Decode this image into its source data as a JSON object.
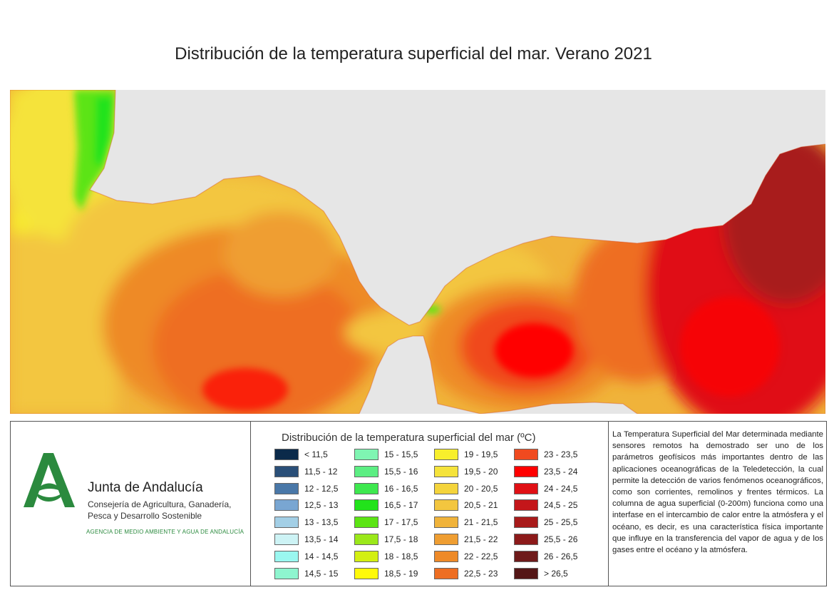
{
  "title": "Distribución de la temperatura superficial del mar. Verano 2021",
  "legend": {
    "title": "Distribución de la temperatura superficial del mar (ºC)",
    "columns": [
      [
        {
          "label": "< 11,5",
          "color": "#0b2a4a"
        },
        {
          "label": "11,5 - 12",
          "color": "#2a4f78"
        },
        {
          "label": "12 - 12,5",
          "color": "#4a78a8"
        },
        {
          "label": "12,5 - 13",
          "color": "#79a6d2"
        },
        {
          "label": "13 - 13,5",
          "color": "#a3cfe6"
        },
        {
          "label": "13,5 - 14",
          "color": "#cdf3f5"
        },
        {
          "label": "14 - 14,5",
          "color": "#9af7f0"
        },
        {
          "label": "14,5 - 15",
          "color": "#8ef5cf"
        }
      ],
      [
        {
          "label": "15 - 15,5",
          "color": "#7ff5b2"
        },
        {
          "label": "15,5 - 16",
          "color": "#5cee83"
        },
        {
          "label": "16 - 16,5",
          "color": "#3ee84f"
        },
        {
          "label": "16,5 - 17",
          "color": "#22e31b"
        },
        {
          "label": "17 - 17,5",
          "color": "#5ce414"
        },
        {
          "label": "17,5 - 18",
          "color": "#9be81a"
        },
        {
          "label": "18 - 18,5",
          "color": "#d3ef12"
        },
        {
          "label": "18,5 - 19",
          "color": "#fffa0a"
        }
      ],
      [
        {
          "label": "19 - 19,5",
          "color": "#f8ef2c"
        },
        {
          "label": "19,5 - 20",
          "color": "#f5e33b"
        },
        {
          "label": "20 - 20,5",
          "color": "#f4d43c"
        },
        {
          "label": "20,5 - 21",
          "color": "#f3c63f"
        },
        {
          "label": "21 - 21,5",
          "color": "#f0b33a"
        },
        {
          "label": "21,5 - 22",
          "color": "#ef9e32"
        },
        {
          "label": "22 - 22,5",
          "color": "#ee8a28"
        },
        {
          "label": "22,5 - 23",
          "color": "#ee6e22"
        }
      ],
      [
        {
          "label": "23 - 23,5",
          "color": "#f04a1f"
        },
        {
          "label": "23,5 - 24",
          "color": "#ff0000"
        },
        {
          "label": "24 - 24,5",
          "color": "#e01015"
        },
        {
          "label": "24,5 - 25",
          "color": "#c4161a"
        },
        {
          "label": "25 - 25,5",
          "color": "#a81a1a"
        },
        {
          "label": "25,5 - 26",
          "color": "#8c1a1a"
        },
        {
          "label": "26 - 26,5",
          "color": "#6e1a1a"
        },
        {
          "label": "> 26,5",
          "color": "#541616"
        }
      ]
    ]
  },
  "organization": {
    "name": "Junta de Andalucía",
    "sub_line1": "Consejería de Agricultura, Ganadería,",
    "sub_line2": "Pesca y Desarrollo Sostenible",
    "agency": "AGENCIA DE MEDIO AMBIENTE Y AGUA DE ANDALUCÍA",
    "brand_color": "#2b8a3e"
  },
  "description": "La Temperatura Superficial del Mar determinada mediante sensores remotos ha demostrado ser uno de los parámetros geofísicos más importantes dentro de las aplicaciones oceanográficas de la Teledetección, la cual permite la detección de varios fenómenos oceanográficos, como son corrientes, remolinos y frentes térmicos. La columna de agua superficial (0-200m) funciona como una interfase en el intercambio de calor entre la atmósfera y el océano, es decir, es una característica física importante que influye en la transferencia del vapor de agua y de los gases entre el océano y la atmósfera.",
  "map": {
    "land_color": "#e6e6e6",
    "colors": {
      "yellow": "#f8ef2c",
      "light_yellow": "#f3e04a",
      "green": "#5ce414",
      "green_dark": "#22c81b",
      "orange_light": "#f3c63f",
      "orange": "#ef9e32",
      "orange_dark": "#ee6e22",
      "red_orange": "#f04a1f",
      "red": "#ff0000",
      "dark_red": "#c4161a",
      "maroon": "#a81a1a"
    }
  }
}
